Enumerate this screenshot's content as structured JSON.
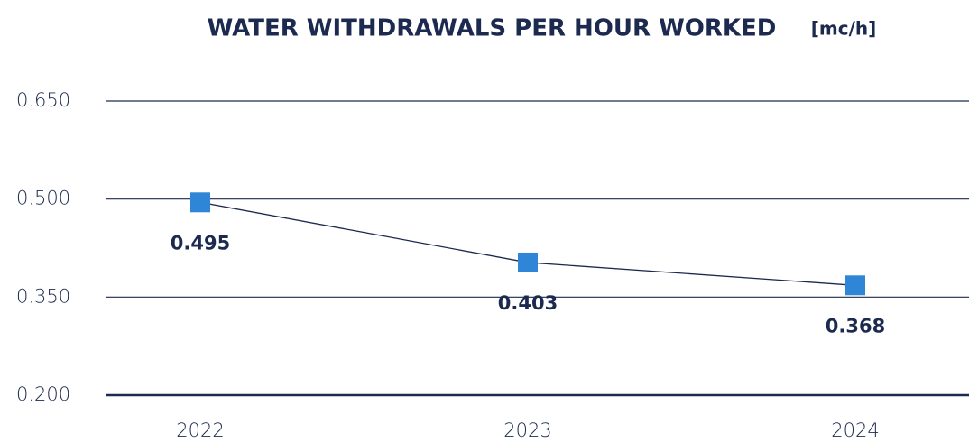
{
  "chart_data": {
    "type": "line",
    "title": "WATER WITHDRAWALS PER HOUR WORKED",
    "unit": "[mc/h]",
    "categories": [
      "2022",
      "2023",
      "2024"
    ],
    "series": [
      {
        "name": "Water withdrawals per hour worked",
        "color": "#2f86d6",
        "values": [
          0.495,
          0.403,
          0.368
        ]
      }
    ],
    "ylim": [
      0.2,
      0.65
    ],
    "yticks": [
      {
        "value": 0.2,
        "label": "0.200"
      },
      {
        "value": 0.35,
        "label": "0.350"
      },
      {
        "value": 0.5,
        "label": "0.500"
      },
      {
        "value": 0.65,
        "label": "0.650"
      }
    ],
    "grid": true
  }
}
